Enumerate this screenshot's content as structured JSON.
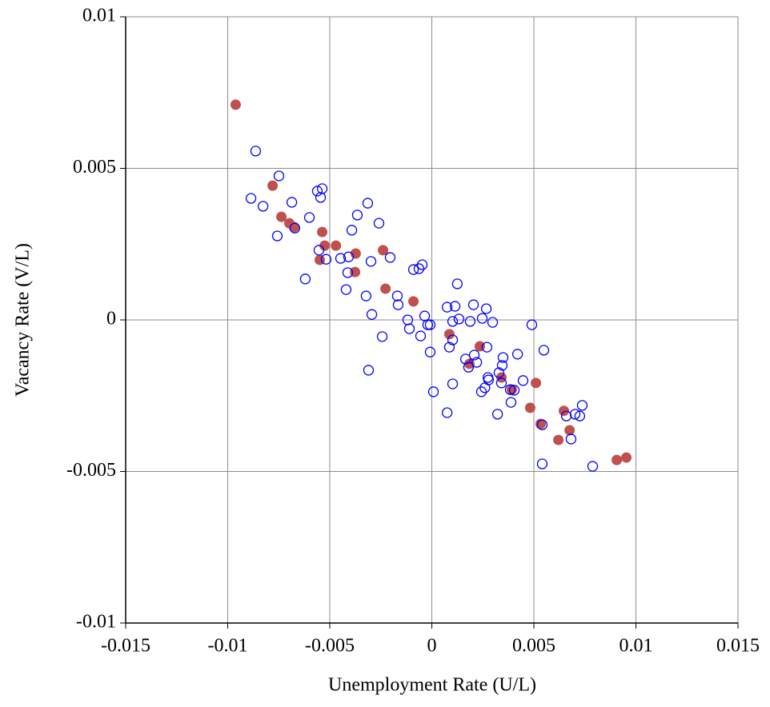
{
  "chart_data": {
    "type": "scatter",
    "xlabel": "Unemployment Rate (U/L)",
    "ylabel": "Vacancy Rate (V/L)",
    "xlim": [
      -0.015,
      0.015
    ],
    "ylim": [
      -0.01,
      0.01
    ],
    "xticks": [
      -0.015,
      -0.01,
      -0.005,
      0,
      0.005,
      0.01,
      0.015
    ],
    "yticks": [
      -0.01,
      -0.005,
      0,
      0.005,
      0.01
    ],
    "grid": true,
    "series": [
      {
        "color": "#c0504d",
        "marker": "filled",
        "x": [
          -0.00961,
          -0.0078,
          -0.00737,
          -0.00698,
          -0.00675,
          -0.00537,
          -0.00525,
          -0.0047,
          -0.00549,
          -0.00373,
          -0.00376,
          -0.00239,
          -0.00227,
          -0.0009,
          0.00086,
          0.00184,
          0.00235,
          0.00341,
          0.00392,
          0.0051,
          0.00482,
          0.00533,
          0.00647,
          0.00675,
          0.0062,
          0.00906,
          0.00953
        ],
        "values": [
          0.0071,
          0.00443,
          0.0034,
          0.00319,
          0.00306,
          0.0029,
          0.00245,
          0.00245,
          0.00198,
          0.00219,
          0.00158,
          0.0023,
          0.00103,
          0.00061,
          -0.00047,
          -0.00145,
          -0.00087,
          -0.0019,
          -0.0023,
          -0.00208,
          -0.0029,
          -0.00343,
          -0.003,
          -0.00364,
          -0.00396,
          -0.00462,
          -0.00454
        ]
      },
      {
        "color": "#0000ff",
        "marker": "open",
        "x": [
          -0.00863,
          -0.00749,
          -0.00886,
          -0.00827,
          -0.00757,
          -0.00686,
          -0.00671,
          -0.006,
          -0.0062,
          -0.00561,
          -0.00537,
          -0.00545,
          -0.00553,
          -0.00518,
          -0.00447,
          -0.00408,
          -0.00412,
          -0.00392,
          -0.00365,
          -0.0042,
          -0.00314,
          -0.00259,
          -0.00298,
          -0.00204,
          -0.00322,
          -0.00294,
          -0.0031,
          -0.00243,
          -0.00169,
          -0.00165,
          -0.00118,
          -0.0011,
          -0.0009,
          -0.00063,
          -0.00047,
          -0.00055,
          -0.00035,
          -0.0002,
          -8e-05,
          -8e-05,
          8e-05,
          0.00075,
          0.00114,
          0.00125,
          0.00102,
          0.00133,
          0.00086,
          0.00102,
          0.00102,
          0.00075,
          0.00188,
          0.00204,
          0.00267,
          0.00247,
          0.00298,
          0.0027,
          0.00165,
          0.00208,
          0.0022,
          0.0018,
          0.00275,
          0.00278,
          0.00243,
          0.0026,
          0.00322,
          0.00329,
          0.00349,
          0.00345,
          0.00341,
          0.0042,
          0.00384,
          0.00388,
          0.00404,
          0.00447,
          0.0049,
          0.00549,
          0.00541,
          0.00541,
          0.00659,
          0.00682,
          0.00702,
          0.00725,
          0.00737,
          0.00788
        ],
        "values": [
          0.00557,
          0.00475,
          0.00401,
          0.00375,
          0.00277,
          0.00388,
          0.00303,
          0.00338,
          0.00135,
          0.00425,
          0.00433,
          0.00404,
          0.0023,
          0.002,
          0.00203,
          0.00208,
          0.00156,
          0.00296,
          0.00346,
          0.001,
          0.00385,
          0.00319,
          0.00193,
          0.00206,
          0.00079,
          0.00018,
          -0.00166,
          -0.00055,
          0.00079,
          0.0005,
          0,
          -0.00029,
          0.00166,
          0.00169,
          0.00182,
          -0.00053,
          0.00013,
          -0.00016,
          -0.00016,
          -0.00106,
          -0.00237,
          0.00042,
          0.00045,
          0.00119,
          -5e-05,
          3e-05,
          -0.0009,
          -0.00066,
          -0.00211,
          -0.00306,
          -5e-05,
          0.0005,
          0.00037,
          5e-05,
          -8e-05,
          -0.0009,
          -0.00129,
          -0.00116,
          -0.0014,
          -0.00156,
          -0.0019,
          -0.00198,
          -0.00237,
          -0.00224,
          -0.00311,
          -0.00174,
          -0.00124,
          -0.0015,
          -0.00208,
          -0.00113,
          -0.0023,
          -0.00272,
          -0.00232,
          -0.002,
          -0.00016,
          -0.001,
          -0.00346,
          -0.00475,
          -0.00317,
          -0.00393,
          -0.00311,
          -0.00317,
          -0.00282,
          -0.00483
        ]
      }
    ]
  }
}
